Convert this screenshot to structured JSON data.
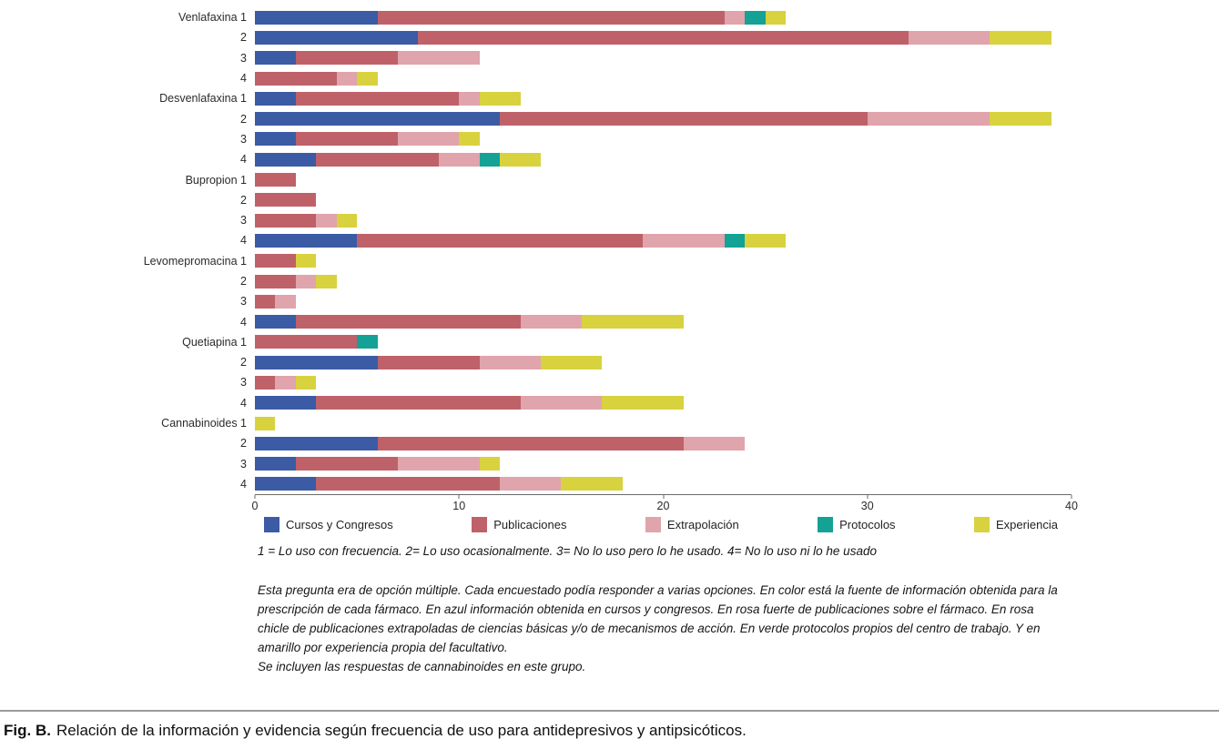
{
  "chart_data": {
    "type": "bar",
    "orientation": "horizontal-stacked",
    "title": "",
    "xlabel": "",
    "ylabel": "",
    "xlim": [
      0,
      40
    ],
    "x_ticks": [
      0,
      10,
      20,
      30,
      40
    ],
    "grid": false,
    "legend_position": "bottom",
    "categories": [
      "Venlafaxina 1",
      "2",
      "3",
      "4",
      "Desvenlafaxina 1",
      "2",
      "3",
      "4",
      "Bupropion 1",
      "2",
      "3",
      "4",
      "Levomepromacina 1",
      "2",
      "3",
      "4",
      "Quetiapina 1",
      "2",
      "3",
      "4",
      "Cannabinoides 1",
      "2",
      "3",
      "4"
    ],
    "series": [
      {
        "name": "Cursos y Congresos",
        "color": "#3b5ba5",
        "values": [
          6,
          8,
          2,
          0,
          2,
          12,
          2,
          3,
          0,
          0,
          0,
          5,
          0,
          0,
          0,
          2,
          0,
          6,
          0,
          3,
          0,
          6,
          2,
          3
        ]
      },
      {
        "name": "Publicaciones",
        "color": "#bf6169",
        "values": [
          17,
          24,
          5,
          4,
          8,
          18,
          5,
          6,
          2,
          3,
          3,
          14,
          2,
          2,
          1,
          11,
          5,
          5,
          1,
          10,
          0,
          15,
          5,
          9
        ]
      },
      {
        "name": "Extrapolación",
        "color": "#e0a4ac",
        "values": [
          1,
          4,
          4,
          1,
          1,
          6,
          3,
          2,
          0,
          0,
          1,
          4,
          0,
          1,
          1,
          3,
          0,
          3,
          1,
          4,
          0,
          3,
          4,
          3
        ]
      },
      {
        "name": "Protocolos",
        "color": "#13a295",
        "values": [
          1,
          0,
          0,
          0,
          0,
          0,
          0,
          1,
          0,
          0,
          0,
          1,
          0,
          0,
          0,
          0,
          1,
          0,
          0,
          0,
          0,
          0,
          0,
          0
        ]
      },
      {
        "name": "Experiencia",
        "color": "#d8d23f",
        "values": [
          1,
          3,
          0,
          1,
          2,
          3,
          1,
          2,
          0,
          0,
          1,
          2,
          1,
          1,
          0,
          5,
          0,
          3,
          1,
          4,
          1,
          0,
          1,
          3
        ]
      }
    ]
  },
  "notes": {
    "scale_note": "1 = Lo uso con frecuencia. 2= Lo uso ocasionalmente. 3= No lo uso pero lo he usado. 4= No lo uso ni lo he usado",
    "paragraph_1": "Esta pregunta era de opción múltiple. Cada encuestado podía responder a varias opciones. En color está la fuente de información obtenida para la prescripción de cada fármaco. En azul información obtenida en cursos y congresos. En rosa fuerte de publicaciones sobre el fármaco. En rosa chicle de publicaciones extrapoladas de ciencias básicas y/o de mecanismos de acción. En verde protocolos propios del centro de trabajo. Y en amarillo por experiencia propia del facultativo.",
    "paragraph_2": "Se incluyen las respuestas de cannabinoides en este grupo."
  },
  "caption": {
    "label": "Fig. B.",
    "text": "Relación de la información y evidencia según frecuencia de uso para antidepresivos y antipsicóticos."
  }
}
